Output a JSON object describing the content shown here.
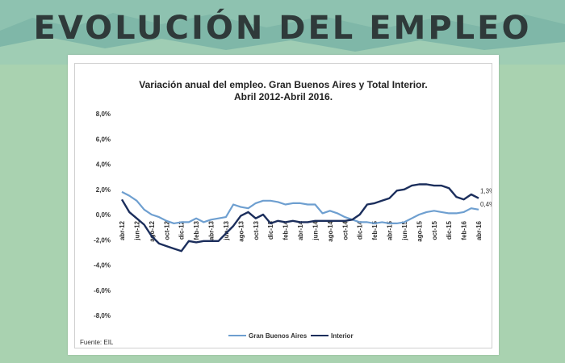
{
  "page": {
    "headline": "EVOLUCIÓN DEL EMPLEO",
    "colors": {
      "background": "#a9d2b0",
      "headline": "#2f3a3a",
      "series_gba": "#6e9fd0",
      "series_interior": "#1b2e5c"
    }
  },
  "chart_data": {
    "type": "line",
    "title_line1": "Variación anual del empleo. Gran Buenos Aires y Total Interior.",
    "title_line2": "Abril 2012-Abril 2016.",
    "ylim": [
      -8,
      8
    ],
    "yticks": [
      "8,0%",
      "6,0%",
      "4,0%",
      "2,0%",
      "0,0%",
      "-2,0%",
      "-4,0%",
      "-6,0%",
      "-8,0%"
    ],
    "ytick_values": [
      8,
      6,
      4,
      2,
      0,
      -2,
      -4,
      -6,
      -8
    ],
    "x_tick_labels": [
      {
        "index": 0,
        "label": "abr-12"
      },
      {
        "index": 2,
        "label": "jun-12"
      },
      {
        "index": 4,
        "label": "ago-12"
      },
      {
        "index": 6,
        "label": "oct-12"
      },
      {
        "index": 8,
        "label": "dic-12"
      },
      {
        "index": 10,
        "label": "feb-13"
      },
      {
        "index": 12,
        "label": "abr-13"
      },
      {
        "index": 14,
        "label": "jun-13"
      },
      {
        "index": 16,
        "label": "ago-13"
      },
      {
        "index": 18,
        "label": "oct-13"
      },
      {
        "index": 20,
        "label": "dic-13"
      },
      {
        "index": 22,
        "label": "feb-14"
      },
      {
        "index": 24,
        "label": "abr-14"
      },
      {
        "index": 26,
        "label": "jun-14"
      },
      {
        "index": 28,
        "label": "ago-14"
      },
      {
        "index": 30,
        "label": "oct-14"
      },
      {
        "index": 32,
        "label": "dic-14"
      },
      {
        "index": 34,
        "label": "feb-15"
      },
      {
        "index": 36,
        "label": "abr-15"
      },
      {
        "index": 38,
        "label": "jun-15"
      },
      {
        "index": 40,
        "label": "ago-15"
      },
      {
        "index": 42,
        "label": "oct-15"
      },
      {
        "index": 44,
        "label": "dic-15"
      },
      {
        "index": 46,
        "label": "feb-16"
      },
      {
        "index": 48,
        "label": "abr-16"
      }
    ],
    "series": [
      {
        "name": "Gran Buenos Aires",
        "color": "#6e9fd0",
        "values": [
          1.8,
          1.5,
          1.1,
          0.4,
          0.0,
          -0.2,
          -0.5,
          -0.7,
          -0.6,
          -0.6,
          -0.3,
          -0.6,
          -0.4,
          -0.3,
          -0.2,
          0.8,
          0.6,
          0.5,
          0.9,
          1.1,
          1.1,
          1.0,
          0.8,
          0.9,
          0.9,
          0.8,
          0.8,
          0.1,
          0.3,
          0.1,
          -0.2,
          -0.4,
          -0.6,
          -0.6,
          -0.7,
          -0.6,
          -0.7,
          -0.7,
          -0.6,
          -0.3,
          0.0,
          0.2,
          0.3,
          0.2,
          0.1,
          0.1,
          0.2,
          0.5,
          0.4
        ],
        "end_label": "0,4%"
      },
      {
        "name": "Interior",
        "color": "#1b2e5c",
        "values": [
          1.2,
          0.2,
          -0.3,
          -0.8,
          -1.7,
          -2.3,
          -2.5,
          -2.7,
          -2.9,
          -2.1,
          -2.2,
          -2.1,
          -2.1,
          -2.1,
          -1.5,
          -0.9,
          -0.1,
          0.2,
          -0.3,
          0.0,
          -0.7,
          -0.5,
          -0.6,
          -0.5,
          -0.6,
          -0.6,
          -0.5,
          -0.5,
          -0.5,
          -0.5,
          -0.5,
          -0.4,
          0.0,
          0.8,
          0.9,
          1.1,
          1.3,
          1.9,
          2.0,
          2.3,
          2.4,
          2.4,
          2.3,
          2.3,
          2.1,
          1.4,
          1.2,
          1.6,
          1.3
        ],
        "end_label": "1,3%"
      }
    ],
    "legend": [
      "Gran Buenos Aires",
      "Interior"
    ],
    "legend_position": "bottom",
    "grid": false,
    "source": "Fuente: EIL"
  }
}
